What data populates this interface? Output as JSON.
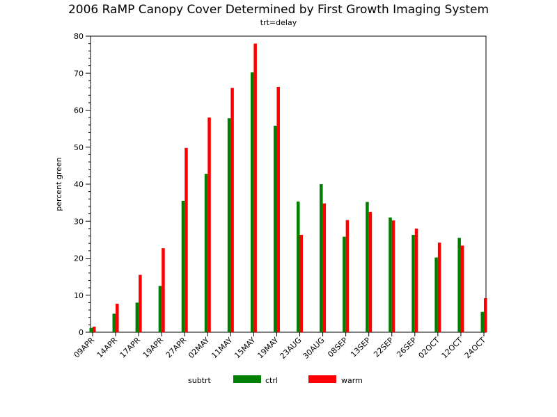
{
  "chart_data": {
    "type": "bar",
    "title": "2006 RaMP Canopy Cover Determined by First Growth Imaging System",
    "subtitle": "trt=delay",
    "xlabel": "",
    "ylabel": "percent green",
    "ylim": [
      0,
      80
    ],
    "yticks": [
      0,
      10,
      20,
      30,
      40,
      50,
      60,
      70,
      80
    ],
    "grid": false,
    "legend": {
      "title": "subtrt",
      "position": "bottom"
    },
    "categories": [
      "09APR",
      "14APR",
      "17APR",
      "19APR",
      "27APR",
      "02MAY",
      "11MAY",
      "15MAY",
      "19MAY",
      "23AUG",
      "30AUG",
      "08SEP",
      "13SEP",
      "22SEP",
      "26SEP",
      "02OCT",
      "12OCT",
      "24OCT"
    ],
    "series": [
      {
        "name": "ctrl",
        "color": "#008000",
        "values": [
          1.2,
          5.0,
          8.0,
          12.5,
          35.5,
          42.8,
          57.8,
          70.2,
          55.8,
          35.3,
          40.0,
          25.8,
          35.2,
          31.0,
          26.3,
          20.2,
          25.5,
          5.5
        ]
      },
      {
        "name": "warm",
        "color": "#ff0000",
        "values": [
          1.5,
          7.7,
          15.5,
          22.7,
          49.8,
          58.0,
          66.0,
          78.0,
          66.3,
          26.3,
          34.8,
          30.3,
          32.5,
          30.2,
          28.0,
          24.2,
          23.4,
          9.2
        ]
      }
    ]
  }
}
